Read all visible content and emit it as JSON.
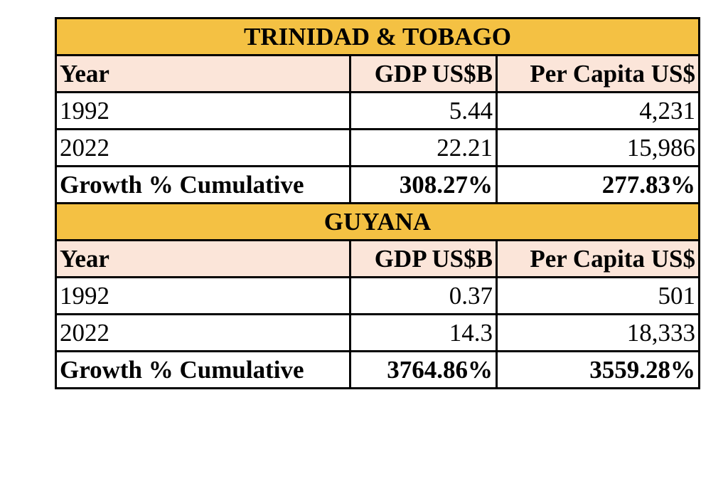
{
  "colors": {
    "country_band": "#f4c143",
    "header_band": "#fbe5d9",
    "border": "#000000"
  },
  "tables": [
    {
      "country": "TRINIDAD & TOBAGO",
      "headers": [
        "Year",
        "GDP US$B",
        "Per Capita US$"
      ],
      "rows": [
        {
          "label": "1992",
          "gdp": "5.44",
          "per_capita": "4,231"
        },
        {
          "label": "2022",
          "gdp": "22.21",
          "per_capita": "15,986"
        }
      ],
      "growth": {
        "label": "Growth % Cumulative",
        "gdp": "308.27%",
        "per_capita": "277.83%"
      }
    },
    {
      "country": "GUYANA",
      "headers": [
        "Year",
        "GDP US$B",
        "Per Capita US$"
      ],
      "rows": [
        {
          "label": "1992",
          "gdp": "0.37",
          "per_capita": "501"
        },
        {
          "label": "2022",
          "gdp": "14.3",
          "per_capita": "18,333"
        }
      ],
      "growth": {
        "label": "Growth % Cumulative",
        "gdp": "3764.86%",
        "per_capita": "3559.28%"
      }
    }
  ]
}
